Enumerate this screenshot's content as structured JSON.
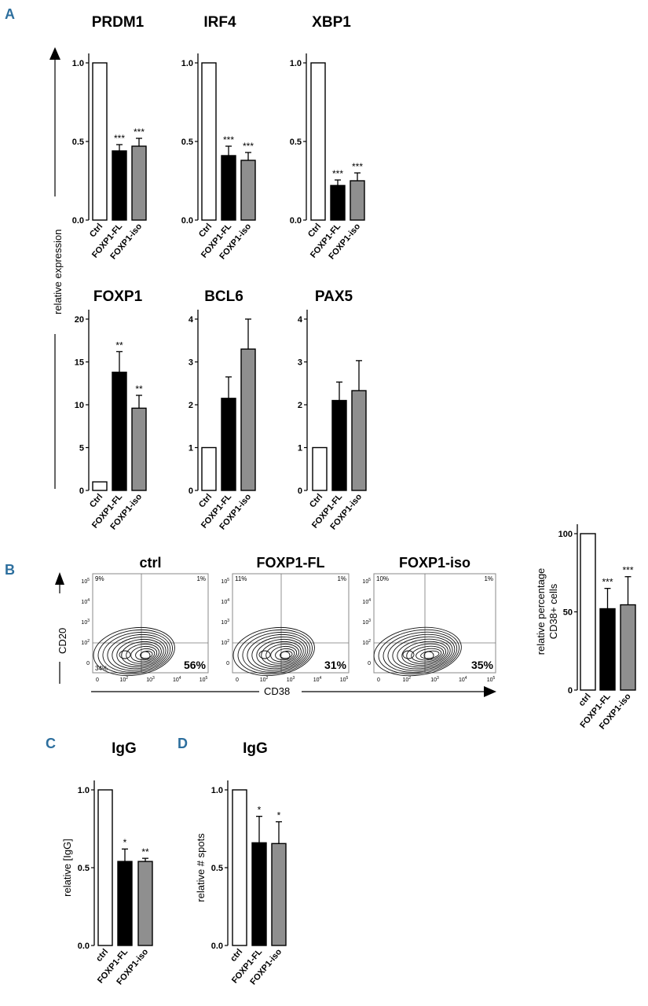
{
  "panels": {
    "A": "A",
    "B": "B",
    "C": "C",
    "D": "D"
  },
  "panelA": {
    "ylabel": "relative expression"
  },
  "chart_data": [
    {
      "id": "prdm1",
      "type": "bar",
      "title": "PRDM1",
      "categories": [
        "Ctrl",
        "FOXP1-FL",
        "FOXP1-iso"
      ],
      "values": [
        1.0,
        0.44,
        0.47
      ],
      "errors": [
        0,
        0.04,
        0.05
      ],
      "significance": [
        "",
        "***",
        "***"
      ],
      "ylim": [
        0,
        1.0
      ],
      "yticks": [
        "0.0",
        "0.5",
        "1.0"
      ],
      "ytick_values": [
        0,
        0.5,
        1.0
      ],
      "ylabel": ""
    },
    {
      "id": "irf4",
      "type": "bar",
      "title": "IRF4",
      "categories": [
        "Ctrl",
        "FOXP1-FL",
        "FOXP1-iso"
      ],
      "values": [
        1.0,
        0.41,
        0.38
      ],
      "errors": [
        0,
        0.06,
        0.05
      ],
      "significance": [
        "",
        "***",
        "***"
      ],
      "ylim": [
        0,
        1.0
      ],
      "yticks": [
        "0.0",
        "0.5",
        "1.0"
      ],
      "ytick_values": [
        0,
        0.5,
        1.0
      ],
      "ylabel": ""
    },
    {
      "id": "xbp1",
      "type": "bar",
      "title": "XBP1",
      "categories": [
        "Ctrl",
        "FOXP1-FL",
        "FOXP1-iso"
      ],
      "values": [
        1.0,
        0.22,
        0.25
      ],
      "errors": [
        0,
        0.035,
        0.05
      ],
      "significance": [
        "",
        "***",
        "***"
      ],
      "ylim": [
        0,
        1.0
      ],
      "yticks": [
        "0.0",
        "0.5",
        "1.0"
      ],
      "ytick_values": [
        0,
        0.5,
        1.0
      ],
      "ylabel": ""
    },
    {
      "id": "foxp1",
      "type": "bar",
      "title": "FOXP1",
      "categories": [
        "Ctrl",
        "FOXP1-FL",
        "FOXP1-iso"
      ],
      "values": [
        1.0,
        13.8,
        9.6
      ],
      "errors": [
        0,
        2.4,
        1.5
      ],
      "significance": [
        "",
        "**",
        "**"
      ],
      "ylim": [
        0,
        20
      ],
      "yticks": [
        "0",
        "5",
        "10",
        "15",
        "20"
      ],
      "ytick_values": [
        0,
        5,
        10,
        15,
        20
      ],
      "ylabel": ""
    },
    {
      "id": "bcl6",
      "type": "bar",
      "title": "BCL6",
      "categories": [
        "Ctrl",
        "FOXP1-FL",
        "FOXP1-iso"
      ],
      "values": [
        1.0,
        2.15,
        3.3
      ],
      "errors": [
        0,
        0.5,
        0.7
      ],
      "significance": [
        "",
        "",
        ""
      ],
      "ylim": [
        0,
        4
      ],
      "yticks": [
        "0",
        "1",
        "2",
        "3",
        "4"
      ],
      "ytick_values": [
        0,
        1,
        2,
        3,
        4
      ],
      "ylabel": ""
    },
    {
      "id": "pax5",
      "type": "bar",
      "title": "PAX5",
      "categories": [
        "Ctrl",
        "FOXP1-FL",
        "FOXP1-iso"
      ],
      "values": [
        1.0,
        2.1,
        2.33
      ],
      "errors": [
        0,
        0.43,
        0.7
      ],
      "significance": [
        "",
        "",
        ""
      ],
      "ylim": [
        0,
        4
      ],
      "yticks": [
        "0",
        "1",
        "2",
        "3",
        "4"
      ],
      "ytick_values": [
        0,
        1,
        2,
        3,
        4
      ],
      "ylabel": ""
    },
    {
      "id": "cd38",
      "type": "bar",
      "title": "",
      "categories": [
        "ctrl",
        "FOXP1-FL",
        "FOXP1-iso"
      ],
      "values": [
        100,
        52,
        54.5
      ],
      "errors": [
        0,
        13,
        18
      ],
      "significance": [
        "",
        "***",
        "***"
      ],
      "ylim": [
        0,
        100
      ],
      "yticks": [
        "0",
        "50",
        "100"
      ],
      "ytick_values": [
        0,
        50,
        100
      ],
      "ylabel": "relative percentage CD38+ cells",
      "ylabel_lines": [
        "relative percentage",
        "CD38+ cells"
      ]
    },
    {
      "id": "iggc",
      "type": "bar",
      "title": "IgG",
      "categories": [
        "ctrl",
        "FOXP1-FL",
        "FOXP1-iso"
      ],
      "values": [
        1.0,
        0.54,
        0.54
      ],
      "errors": [
        0,
        0.08,
        0.02
      ],
      "significance": [
        "",
        "*",
        "**"
      ],
      "ylim": [
        0,
        1.0
      ],
      "yticks": [
        "0.0",
        "0.5",
        "1.0"
      ],
      "ytick_values": [
        0,
        0.5,
        1.0
      ],
      "ylabel": "relative [IgG]"
    },
    {
      "id": "iggd",
      "type": "bar",
      "title": "IgG",
      "categories": [
        "ctrl",
        "FOXP1-FL",
        "FOXP1-iso"
      ],
      "values": [
        1.0,
        0.66,
        0.655
      ],
      "errors": [
        0,
        0.17,
        0.14
      ],
      "significance": [
        "",
        "*",
        "*"
      ],
      "ylim": [
        0,
        1.0
      ],
      "yticks": [
        "0.0",
        "0.5",
        "1.0"
      ],
      "ytick_values": [
        0,
        0.5,
        1.0
      ],
      "ylabel": "relative # spots"
    }
  ],
  "flow": {
    "xlabel": "CD38",
    "ylabel": "CD20",
    "plots": [
      {
        "title": "ctrl",
        "q_upper_left": "9%",
        "q_upper_right": "1%",
        "q_lower_left": "34%",
        "q_lower_right": "56%"
      },
      {
        "title": "FOXP1-FL",
        "q_upper_left": "11%",
        "q_upper_right": "1%",
        "q_lower_right": "31%"
      },
      {
        "title": "FOXP1-iso",
        "q_upper_left": "10%",
        "q_upper_right": "1%",
        "q_lower_right": "35%"
      }
    ],
    "x_ticks": [
      "0",
      "10",
      "10",
      "10",
      "10"
    ],
    "x_tick_exps": [
      "",
      "2",
      "3",
      "4",
      "5"
    ],
    "y_ticks": [
      "0",
      "10",
      "10",
      "10",
      "10"
    ],
    "y_tick_exps": [
      "",
      "2",
      "3",
      "4",
      "5"
    ]
  },
  "colors": {
    "ctrl": "#ffffff",
    "fl": "#000000",
    "iso": "#8f8f8f",
    "panel_letter": "#2d6f9e"
  }
}
